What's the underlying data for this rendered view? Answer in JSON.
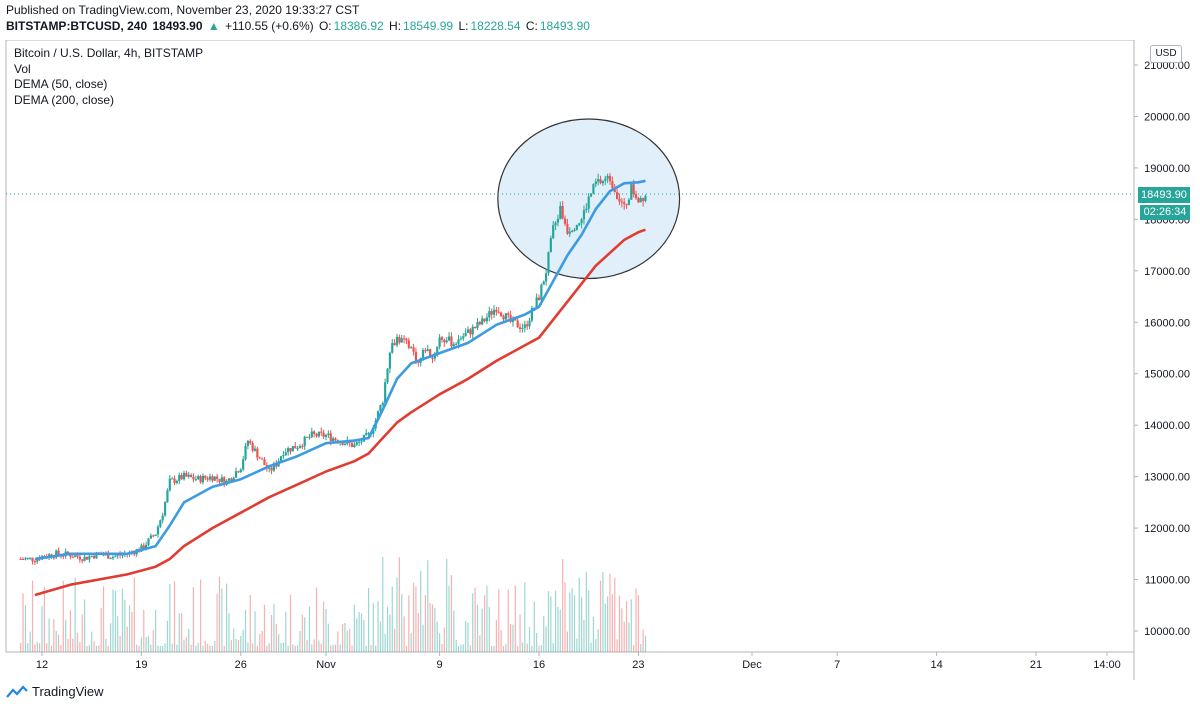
{
  "header": {
    "published": "Published on TradingView.com, November 23, 2020 19:33:27 CST",
    "symbol": "BITSTAMP:BTCUSD, 240",
    "last": "18493.90",
    "change": "+110.55 (+0.6%)",
    "o_label": "O:",
    "o": "18386.92",
    "h_label": "H:",
    "h": "18549.99",
    "l_label": "L:",
    "l": "18228.54",
    "c_label": "C:",
    "c": "18493.90"
  },
  "legend": {
    "title": "Bitcoin / U.S. Dollar, 4h, BITSTAMP",
    "vol": "Vol",
    "dema50": "DEMA (50, close)",
    "dema200": "DEMA (200, close)"
  },
  "currency": "USD",
  "price_tag": "18493.90",
  "countdown": "02:26:34",
  "footer": {
    "brand": "TradingView"
  },
  "colors": {
    "up": "#26a69a",
    "down": "#ef5350",
    "dema50": "#3d9be0",
    "dema200": "#e03c31",
    "circle_fill": "#d6e9f8"
  },
  "chart_data": {
    "type": "candlestick",
    "y_ticks": [
      "21000.00",
      "20000.00",
      "19000.00",
      "18000.00",
      "17000.00",
      "16000.00",
      "15000.00",
      "14000.00",
      "13000.00",
      "12000.00",
      "11000.00",
      "10000.00"
    ],
    "x_ticks": [
      {
        "label": "12",
        "day": 12
      },
      {
        "label": "19",
        "day": 19
      },
      {
        "label": "26",
        "day": 26
      },
      {
        "label": "Nov",
        "day": 32
      },
      {
        "label": "9",
        "day": 40
      },
      {
        "label": "16",
        "day": 47
      },
      {
        "label": "23",
        "day": 54
      },
      {
        "label": "Dec",
        "day": 62
      },
      {
        "label": "7",
        "day": 68
      },
      {
        "label": "14",
        "day": 75
      },
      {
        "label": "21",
        "day": 82
      },
      {
        "label": "14:00",
        "day": 87
      }
    ],
    "ylim": [
      9600,
      21400
    ],
    "close_path": [
      [
        11.5,
        11400
      ],
      [
        12,
        11450
      ],
      [
        13,
        11500
      ],
      [
        14,
        11480
      ],
      [
        15,
        11420
      ],
      [
        16,
        11500
      ],
      [
        17,
        11450
      ],
      [
        18,
        11500
      ],
      [
        19,
        11600
      ],
      [
        20,
        11900
      ],
      [
        20.5,
        12300
      ],
      [
        21,
        12900
      ],
      [
        22,
        13000
      ],
      [
        23,
        12950
      ],
      [
        24,
        13000
      ],
      [
        25,
        12900
      ],
      [
        26,
        13200
      ],
      [
        26.5,
        13700
      ],
      [
        27,
        13500
      ],
      [
        28,
        13100
      ],
      [
        28.5,
        13250
      ],
      [
        29,
        13500
      ],
      [
        30,
        13600
      ],
      [
        31,
        13800
      ],
      [
        32,
        13800
      ],
      [
        33,
        13700
      ],
      [
        34,
        13600
      ],
      [
        35,
        13800
      ],
      [
        35.5,
        14100
      ],
      [
        36,
        14500
      ],
      [
        36.5,
        15500
      ],
      [
        37,
        15700
      ],
      [
        38,
        15500
      ],
      [
        38.5,
        15200
      ],
      [
        39,
        15500
      ],
      [
        39.5,
        15300
      ],
      [
        40,
        15700
      ],
      [
        41,
        15600
      ],
      [
        42,
        15800
      ],
      [
        43,
        16000
      ],
      [
        44,
        16300
      ],
      [
        45,
        16000
      ],
      [
        46,
        15900
      ],
      [
        46.5,
        16200
      ],
      [
        47,
        16500
      ],
      [
        47.5,
        17000
      ],
      [
        48,
        17800
      ],
      [
        48.5,
        18200
      ],
      [
        49,
        17800
      ],
      [
        50,
        18000
      ],
      [
        50.5,
        18400
      ],
      [
        51,
        18700
      ],
      [
        52,
        18800
      ],
      [
        52.5,
        18500
      ],
      [
        53,
        18200
      ],
      [
        53.5,
        18600
      ],
      [
        54,
        18400
      ],
      [
        54.5,
        18490
      ]
    ],
    "dema50": [
      [
        11.5,
        11400
      ],
      [
        14,
        11500
      ],
      [
        18,
        11500
      ],
      [
        20,
        11650
      ],
      [
        21,
        12050
      ],
      [
        22,
        12500
      ],
      [
        24,
        12800
      ],
      [
        26,
        12950
      ],
      [
        28,
        13200
      ],
      [
        30,
        13400
      ],
      [
        32,
        13650
      ],
      [
        34,
        13700
      ],
      [
        35,
        13750
      ],
      [
        36,
        14300
      ],
      [
        37,
        14900
      ],
      [
        38,
        15200
      ],
      [
        40,
        15400
      ],
      [
        42,
        15600
      ],
      [
        44,
        15950
      ],
      [
        46,
        16150
      ],
      [
        47,
        16300
      ],
      [
        48,
        16800
      ],
      [
        49,
        17300
      ],
      [
        50,
        17700
      ],
      [
        51,
        18200
      ],
      [
        52,
        18550
      ],
      [
        53,
        18700
      ],
      [
        54,
        18720
      ],
      [
        54.5,
        18750
      ]
    ],
    "dema200": [
      [
        11.5,
        10700
      ],
      [
        14,
        10900
      ],
      [
        18,
        11100
      ],
      [
        20,
        11250
      ],
      [
        21,
        11400
      ],
      [
        22,
        11650
      ],
      [
        24,
        12000
      ],
      [
        26,
        12300
      ],
      [
        28,
        12600
      ],
      [
        30,
        12850
      ],
      [
        32,
        13100
      ],
      [
        34,
        13300
      ],
      [
        35,
        13450
      ],
      [
        36,
        13750
      ],
      [
        37,
        14050
      ],
      [
        38,
        14250
      ],
      [
        40,
        14600
      ],
      [
        42,
        14900
      ],
      [
        44,
        15250
      ],
      [
        46,
        15550
      ],
      [
        47,
        15700
      ],
      [
        48,
        16050
      ],
      [
        49,
        16400
      ],
      [
        50,
        16750
      ],
      [
        51,
        17100
      ],
      [
        52,
        17350
      ],
      [
        53,
        17600
      ],
      [
        54,
        17750
      ],
      [
        54.5,
        17800
      ]
    ],
    "highlight_circle": {
      "center_day": 50.5,
      "center_price": 18400,
      "radius_days": 4,
      "radius_price": 1550
    }
  }
}
